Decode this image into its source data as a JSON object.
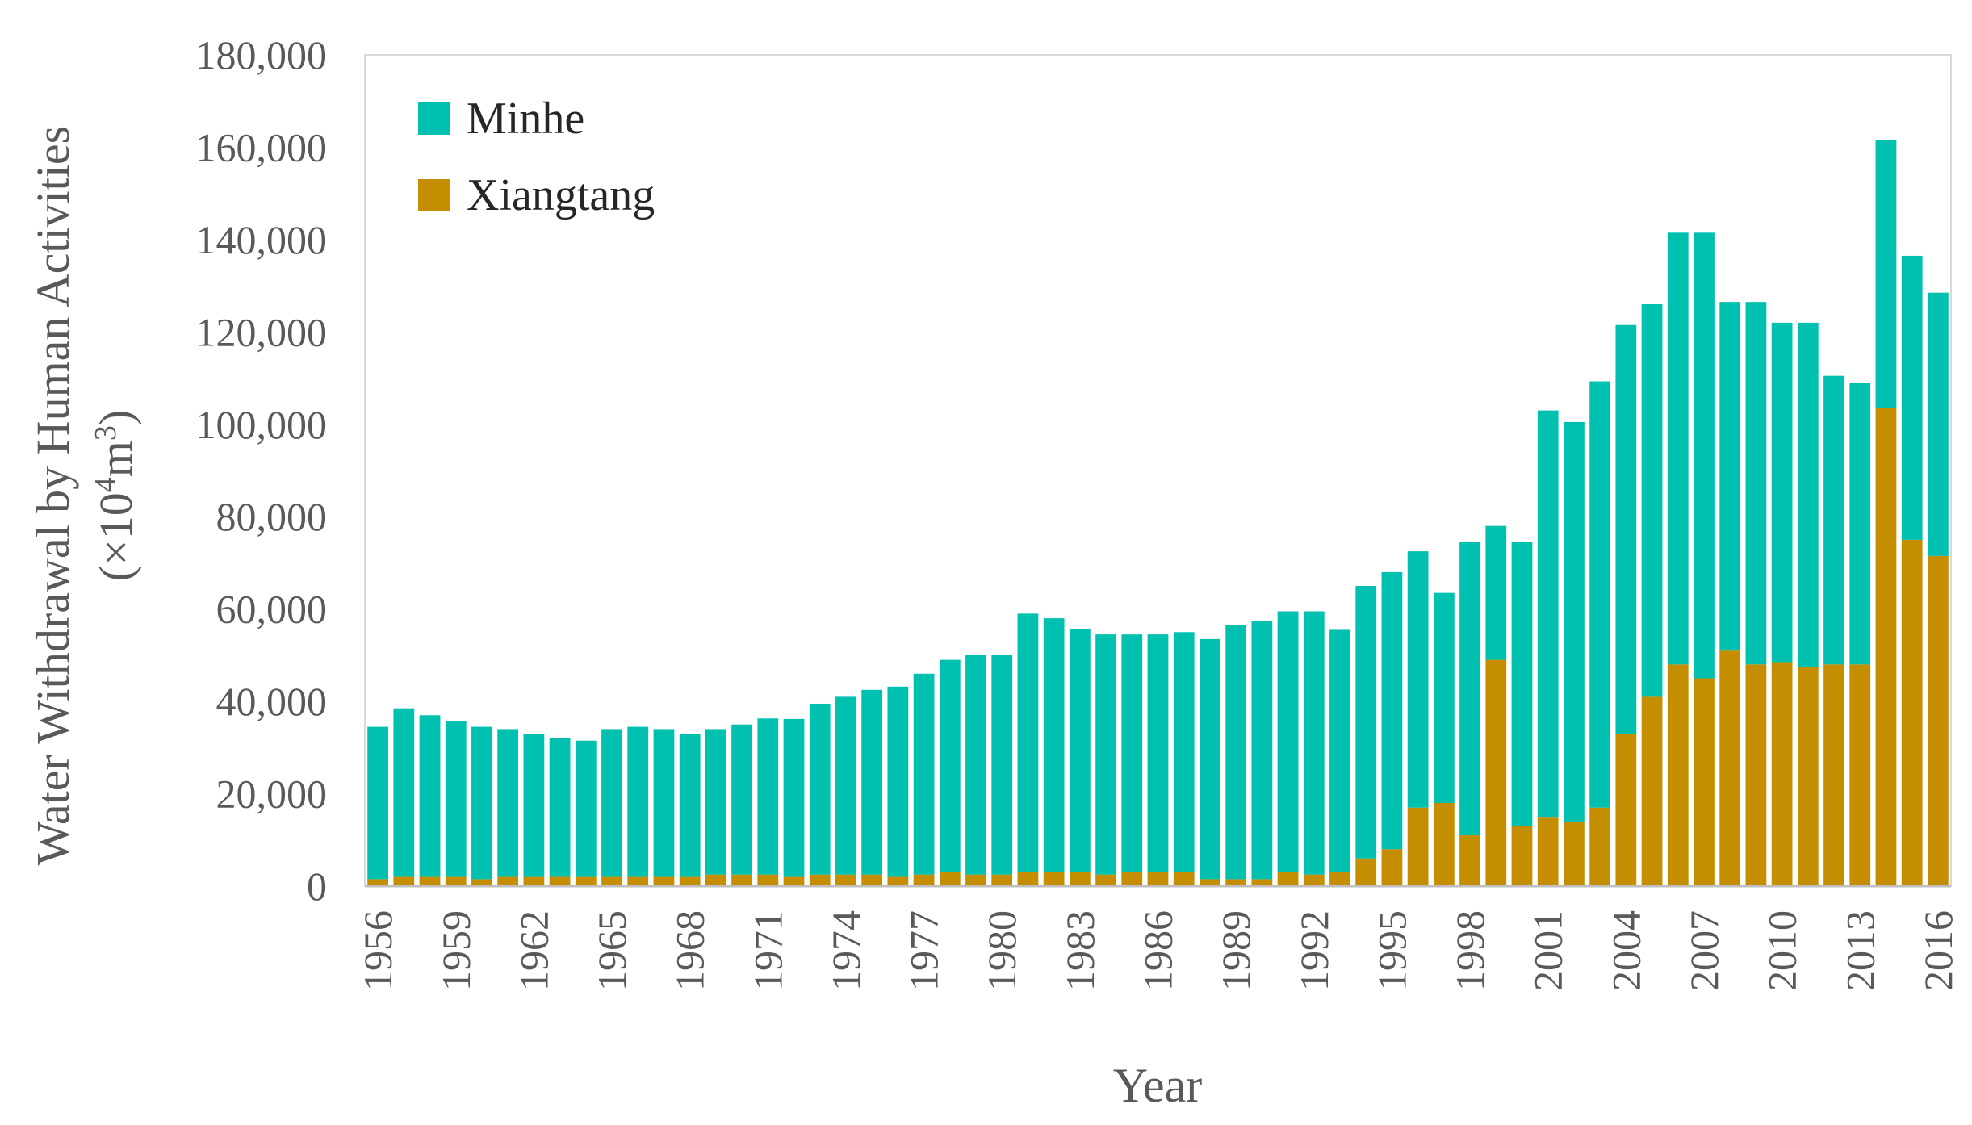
{
  "chart_data": {
    "type": "bar",
    "stacked": true,
    "title": "",
    "xlabel": "Year",
    "ylabel": "Water Withdrawal by Human Activities",
    "ylabel_unit": {
      "open": "(×10",
      "sup1": "4",
      "mid": "m",
      "sup2": "3",
      "close": ")"
    },
    "ylim": [
      0,
      180000
    ],
    "yticks": [
      0,
      20000,
      40000,
      60000,
      80000,
      100000,
      120000,
      140000,
      160000,
      180000
    ],
    "ytick_labels": [
      "0",
      "20,000",
      "40,000",
      "60,000",
      "80,000",
      "100,000",
      "120,000",
      "140,000",
      "160,000",
      "180,000"
    ],
    "xtick_labels": [
      "1956",
      "1959",
      "1962",
      "1965",
      "1968",
      "1971",
      "1974",
      "1977",
      "1980",
      "1983",
      "1986",
      "1989",
      "1992",
      "1995",
      "1998",
      "2001",
      "2004",
      "2007",
      "2010",
      "2013",
      "2016"
    ],
    "categories": [
      "1956",
      "1957",
      "1958",
      "1959",
      "1960",
      "1961",
      "1962",
      "1963",
      "1964",
      "1965",
      "1966",
      "1967",
      "1968",
      "1969",
      "1970",
      "1971",
      "1972",
      "1973",
      "1974",
      "1975",
      "1976",
      "1977",
      "1978",
      "1979",
      "1980",
      "1981",
      "1982",
      "1983",
      "1984",
      "1985",
      "1986",
      "1987",
      "1988",
      "1989",
      "1990",
      "1991",
      "1992",
      "1993",
      "1994",
      "1995",
      "1996",
      "1997",
      "1998",
      "1999",
      "2000",
      "2001",
      "2002",
      "2003",
      "2004",
      "2005",
      "2006",
      "2007",
      "2008",
      "2009",
      "2010",
      "2011",
      "2012",
      "2013",
      "2014",
      "2015",
      "2016"
    ],
    "legend_position": "top-left",
    "series": [
      {
        "name": "Xiangtang",
        "color": "#C58E00",
        "values": [
          1500,
          2000,
          2000,
          2000,
          1500,
          2000,
          2000,
          2000,
          2000,
          2000,
          2000,
          2000,
          2000,
          2500,
          2500,
          2500,
          2000,
          2500,
          2500,
          2500,
          2000,
          2500,
          3000,
          2500,
          2500,
          3000,
          3000,
          3000,
          2500,
          3000,
          3000,
          3000,
          1500,
          1500,
          1500,
          3000,
          2500,
          3000,
          6000,
          8000,
          17000,
          18000,
          11000,
          49000,
          13000,
          15000,
          14000,
          17000,
          33000,
          41000,
          48000,
          45000,
          51000,
          48000,
          48500,
          47500,
          48000,
          48000,
          103500,
          75000,
          71500
        ]
      },
      {
        "name": "Minhe",
        "color": "#00C0B0",
        "values": [
          33000,
          36500,
          35000,
          33700,
          33000,
          32000,
          31000,
          30000,
          29500,
          32000,
          32500,
          32000,
          31000,
          31500,
          32500,
          33800,
          34200,
          37000,
          38500,
          40000,
          41200,
          43500,
          46000,
          47500,
          47500,
          56000,
          55000,
          52700,
          52000,
          51500,
          51500,
          52000,
          52000,
          55000,
          56000,
          56500,
          57000,
          52500,
          59000,
          60000,
          55500,
          45500,
          63500,
          29000,
          61500,
          88000,
          86500,
          92300,
          88500,
          85000,
          93500,
          96500,
          75500,
          78500,
          73500,
          74500,
          62500,
          61000,
          58000,
          61500,
          57000
        ]
      }
    ]
  }
}
